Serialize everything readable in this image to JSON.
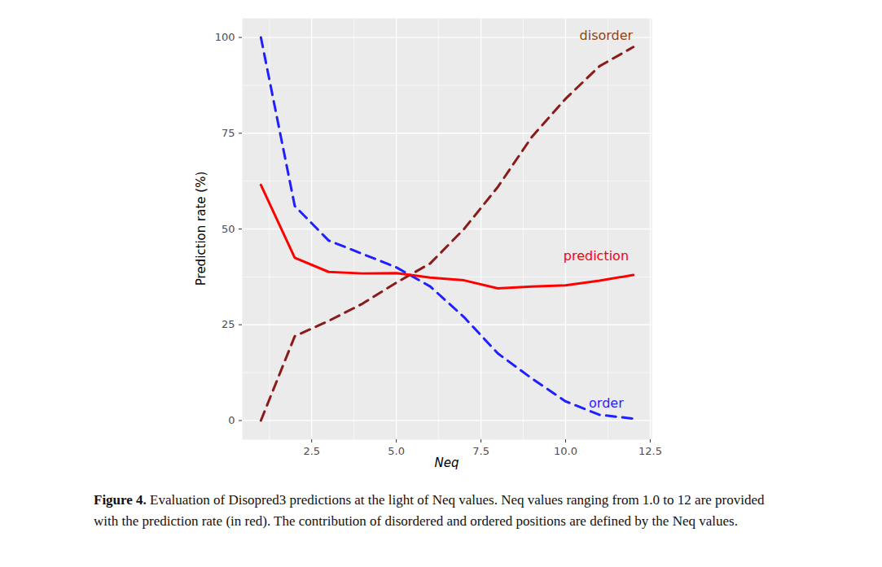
{
  "chart_data": {
    "type": "line",
    "x_label": "Neq",
    "y_label": "Prediction rate (%)",
    "caption_label": "Figure 4.",
    "caption": "Evaluation of Disopred3 predictions at the light of Neq values. Neq values ranging from 1.0 to 12 are provided with the prediction rate (in red). The contribution of disordered and ordered positions are defined by the Neq values.",
    "x": [
      1,
      2,
      3,
      4,
      5,
      6,
      7,
      8,
      9,
      10,
      11,
      12
    ],
    "series": [
      {
        "name": "disorder",
        "color": "#8b1a1a",
        "line_style": "dashed",
        "values": [
          0,
          22,
          26,
          30.5,
          36,
          41,
          50,
          61,
          74,
          84,
          92.5,
          97.5
        ]
      },
      {
        "name": "order",
        "color": "#1f1fff",
        "line_style": "dashed",
        "values": [
          100,
          56,
          47,
          43.5,
          40,
          35,
          27,
          17.5,
          11,
          5,
          1.5,
          0.5
        ]
      },
      {
        "name": "prediction",
        "color": "#ff0000",
        "line_style": "solid",
        "values": [
          61.5,
          42.5,
          38.8,
          38.4,
          38.5,
          37.3,
          36.6,
          34.5,
          35,
          35.3,
          36.5,
          38
        ]
      }
    ],
    "annotations": [
      {
        "text": "disorder",
        "x": 11.2,
        "y": 100.5,
        "color": "#8b4513"
      },
      {
        "text": "prediction",
        "x": 10.9,
        "y": 43,
        "color": "#ff0000"
      },
      {
        "text": "order",
        "x": 11.2,
        "y": 4.5,
        "color": "#1f1fff"
      }
    ],
    "xlim": [
      0.45,
      12.55
    ],
    "ylim": [
      -5,
      105
    ],
    "xticks": [
      {
        "value": 2.5,
        "label": "2.5"
      },
      {
        "value": 5,
        "label": "5.0"
      },
      {
        "value": 7.5,
        "label": "7.5"
      },
      {
        "value": 10,
        "label": "10.0"
      },
      {
        "value": 12.5,
        "label": "12.5"
      }
    ],
    "yticks": [
      0,
      25,
      50,
      75,
      100
    ],
    "grid": true
  }
}
